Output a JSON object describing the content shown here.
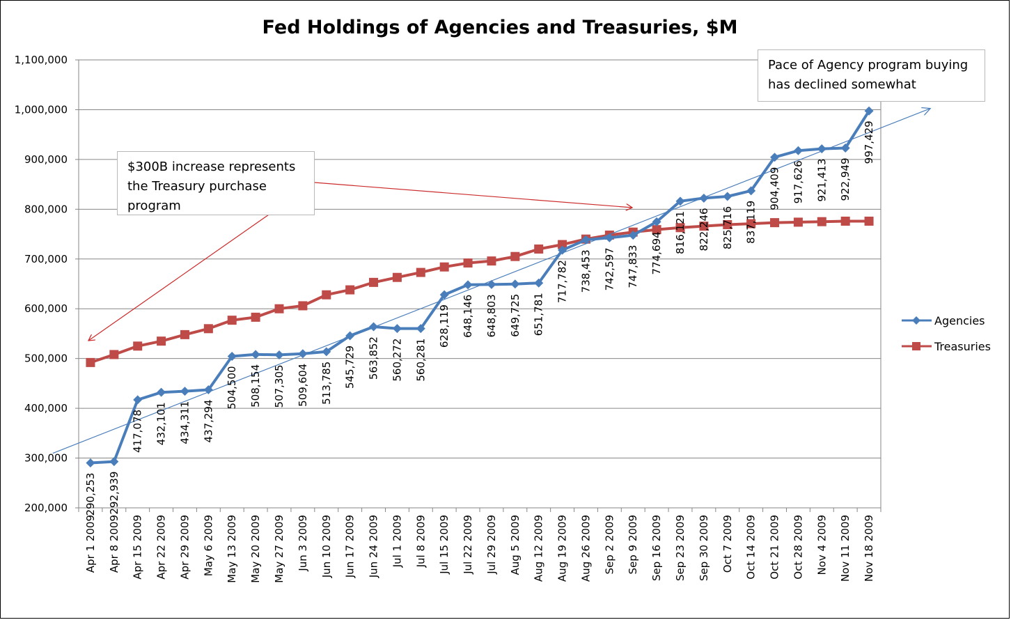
{
  "chart_data": {
    "type": "line",
    "title": "Fed Holdings of Agencies and Treasuries, $M",
    "xlabel": "",
    "ylabel": "",
    "ylim": [
      200000,
      1100000
    ],
    "yticks": [
      200000,
      300000,
      400000,
      500000,
      600000,
      700000,
      800000,
      900000,
      1000000,
      1100000
    ],
    "ytick_labels": [
      "200,000",
      "300,000",
      "400,000",
      "500,000",
      "600,000",
      "700,000",
      "800,000",
      "900,000",
      "1,000,000",
      "1,100,000"
    ],
    "grid": true,
    "legend_position": "right",
    "categories": [
      "Apr 1 2009",
      "Apr 8 2009",
      "Apr 15 2009",
      "Apr 22 2009",
      "Apr 29 2009",
      "May 6 2009",
      "May 13 2009",
      "May 20 2009",
      "May 27 2009",
      "Jun 3 2009",
      "Jun 10 2009",
      "Jun 17 2009",
      "Jun 24 2009",
      "Jul 1 2009",
      "Jul 8 2009",
      "Jul 15 2009",
      "Jul 22 2009",
      "Jul 29 2009",
      "Aug 5 2009",
      "Aug 12 2009",
      "Aug 19 2009",
      "Aug 26 2009",
      "Sep 2 2009",
      "Sep 9 2009",
      "Sep 16 2009",
      "Sep 23 2009",
      "Sep 30 2009",
      "Oct 7 2009",
      "Oct 14 2009",
      "Oct 21 2009",
      "Oct 28 2009",
      "Nov 4 2009",
      "Nov 11 2009",
      "Nov 18 2009"
    ],
    "series": [
      {
        "name": "Agencies",
        "color": "#4a7ebb",
        "marker": "diamond",
        "values": [
          290253,
          292939,
          417078,
          432101,
          434311,
          437294,
          504500,
          508154,
          507305,
          509604,
          513785,
          545729,
          563852,
          560272,
          560281,
          628119,
          648146,
          648803,
          649725,
          651781,
          717782,
          738453,
          742597,
          747833,
          774694,
          816121,
          822246,
          825716,
          837119,
          904409,
          917626,
          921413,
          922949,
          997429
        ],
        "data_labels": [
          "290,253",
          "292,939",
          "417,078",
          "432,101",
          "434,311",
          "437,294",
          "504,500",
          "508,154",
          "507,305",
          "509,604",
          "513,785",
          "545,729",
          "563,852",
          "560,272",
          "560,281",
          "628,119",
          "648,146",
          "648,803",
          "649,725",
          "651,781",
          "717,782",
          "738,453",
          "742,597",
          "747,833",
          "774,694",
          "816,121",
          "822,246",
          "825,716",
          "837,119",
          "904,409",
          "917,626",
          "921,413",
          "922,949",
          "997,429"
        ]
      },
      {
        "name": "Treasuries",
        "color": "#be4b48",
        "marker": "square",
        "values": [
          492000,
          508000,
          525000,
          535000,
          548000,
          560000,
          577000,
          583000,
          600000,
          606000,
          628000,
          638000,
          653000,
          663000,
          673000,
          684000,
          692000,
          696000,
          705000,
          720000,
          729000,
          740000,
          748000,
          754000,
          759000,
          763000,
          766000,
          769000,
          771000,
          773000,
          774000,
          775000,
          776000,
          776000
        ]
      }
    ],
    "trendline": {
      "series": "Agencies",
      "type": "linear",
      "color": "#4a7ebb"
    },
    "annotations": [
      {
        "id": "treasury_note",
        "text": "$300B increase represents\nthe Treasury purchase\nprogram"
      },
      {
        "id": "agency_note",
        "text": "Pace of Agency program buying\nhas declined somewhat"
      }
    ]
  }
}
